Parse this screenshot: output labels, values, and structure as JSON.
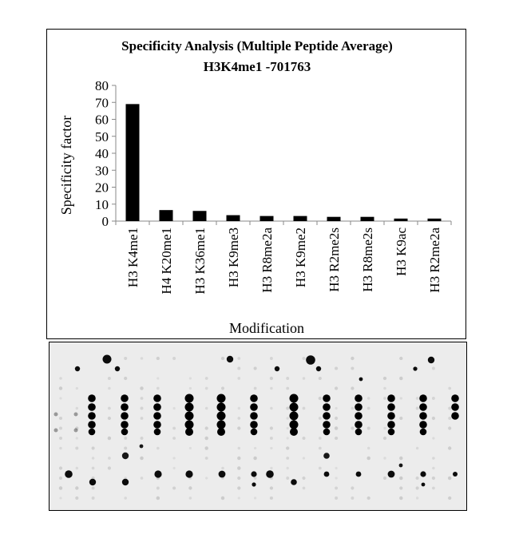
{
  "chart_data": {
    "type": "bar",
    "title": "Specificity Analysis  (Multiple Peptide Average)",
    "subtitle": "H3K4me1 -701763",
    "xlabel": "Modification",
    "ylabel": "Specificity factor",
    "ylim": [
      0,
      80
    ],
    "yticks": [
      0,
      10,
      20,
      30,
      40,
      50,
      60,
      70,
      80
    ],
    "grid": false,
    "categories": [
      "H3 K4me1",
      "H4 K20me1",
      "H3 K36me1",
      "H3 K9me3",
      "H3 R8me2a",
      "H3 K9me2",
      "H3 R2me2s",
      "H3 R8me2s",
      "H3 K9ac",
      "H3 R2me2a"
    ],
    "values": [
      69,
      6.5,
      6,
      3.5,
      3,
      3,
      2.5,
      2.5,
      1.5,
      1.5
    ],
    "bar_color": "#000000"
  },
  "blot": {
    "background": "#ececec",
    "spot_color": "#000000"
  }
}
